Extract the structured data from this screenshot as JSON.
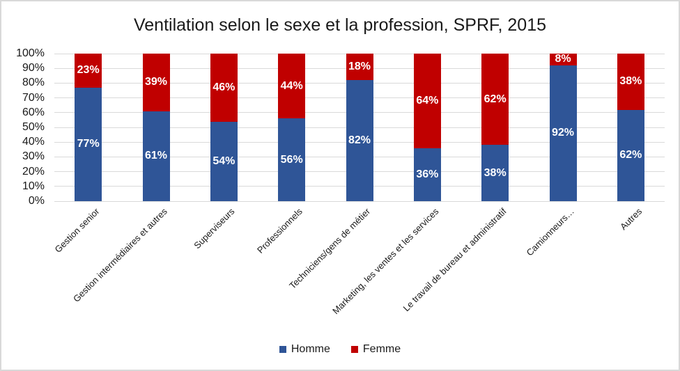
{
  "title": "Ventilation selon le sexe et la profession, SPRF, 2015",
  "y_axis": {
    "ticks": [
      "0%",
      "10%",
      "20%",
      "30%",
      "40%",
      "50%",
      "60%",
      "70%",
      "80%",
      "90%",
      "100%"
    ]
  },
  "legend": [
    {
      "label": "Homme",
      "color": "#2F5597"
    },
    {
      "label": "Femme",
      "color": "#C00000"
    }
  ],
  "colors": {
    "homme": "#2F5597",
    "femme": "#C00000",
    "gridline": "#D9D9D9",
    "data_label": "#FFFFFF",
    "frame_border": "#D9D9D9"
  },
  "chart_data": {
    "type": "bar",
    "stacked": true,
    "title": "Ventilation selon le sexe et la profession, SPRF, 2015",
    "categories": [
      "Gestion senior",
      "Gestion intermédiaires et autres",
      "Superviseurs",
      "Professionnels",
      "Techniciens/gens de métier",
      "Marketing, les ventes et les services",
      "Le travail de bureau et administratif",
      "Camionneurs…",
      "Autres"
    ],
    "series": [
      {
        "name": "Homme",
        "color": "#2F5597",
        "values": [
          77,
          61,
          54,
          56,
          82,
          36,
          38,
          92,
          62
        ]
      },
      {
        "name": "Femme",
        "color": "#C00000",
        "values": [
          23,
          39,
          46,
          44,
          18,
          64,
          62,
          8,
          38
        ]
      }
    ],
    "xlabel": "",
    "ylabel": "",
    "ylim": [
      0,
      100
    ],
    "y_tick_step": 10,
    "grid": true,
    "legend_position": "bottom",
    "data_label_format": "{value}%"
  }
}
